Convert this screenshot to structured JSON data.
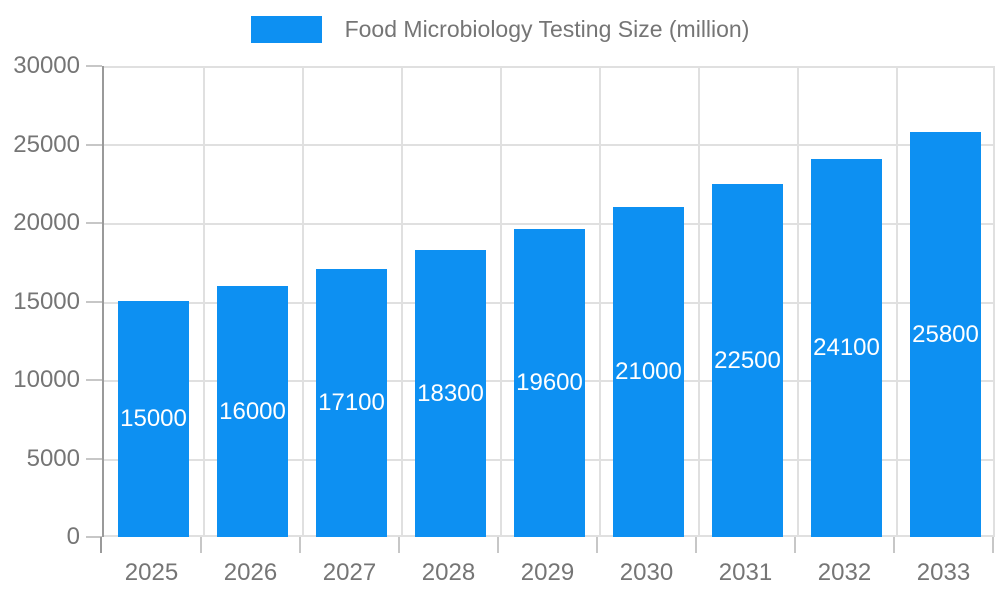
{
  "legend": {
    "label": "Food Microbiology Testing Size (million)"
  },
  "chart_data": {
    "type": "bar",
    "title": "Food Microbiology Testing Size (million)",
    "categories": [
      "2025",
      "2026",
      "2027",
      "2028",
      "2029",
      "2030",
      "2031",
      "2032",
      "2033"
    ],
    "values": [
      15000,
      16000,
      17100,
      18300,
      19600,
      21000,
      22500,
      24100,
      25800
    ],
    "xlabel": "",
    "ylabel": "",
    "ylim": [
      0,
      30000
    ],
    "yticks": [
      0,
      5000,
      10000,
      15000,
      20000,
      25000,
      30000
    ],
    "grid": true,
    "legend_position": "top",
    "bar_labels_inside": true,
    "colors": {
      "bar": "#0d90f2",
      "bar_label": "#ffffff",
      "axis_text": "#757575",
      "grid": "#e0e0e0",
      "axis_line": "#9a9a9a",
      "tick": "#c7c7c7",
      "background": "#ffffff"
    }
  }
}
